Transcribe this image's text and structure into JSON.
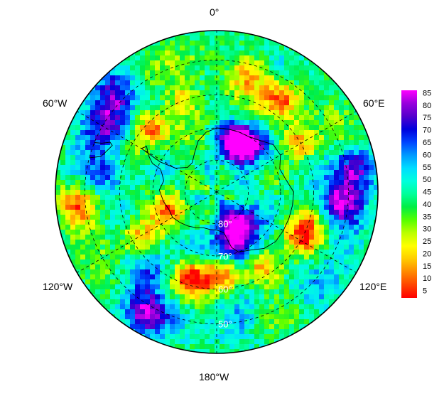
{
  "map": {
    "projection": "south-polar-stereographic",
    "longitude_labels": {
      "top": "0°",
      "upper_left": "60°W",
      "upper_right": "60°E",
      "lower_left": "120°W",
      "lower_right": "120°E",
      "bottom": "180°W"
    },
    "latitude_labels": [
      "80°",
      "70°",
      "60°",
      "50°"
    ],
    "hotspots": [
      {
        "lon": 145,
        "lat": -78,
        "value": 84
      },
      {
        "lon": 160,
        "lat": -72,
        "value": 82
      },
      {
        "lon": 20,
        "lat": -74,
        "value": 80
      },
      {
        "lon": 40,
        "lat": -72,
        "value": 72
      },
      {
        "lon": 95,
        "lat": -52,
        "value": 80
      },
      {
        "lon": 80,
        "lat": -48,
        "value": 78
      },
      {
        "lon": -58,
        "lat": -52,
        "value": 70
      },
      {
        "lon": -80,
        "lat": -55,
        "value": 66
      },
      {
        "lon": -45,
        "lat": -47,
        "value": 70
      },
      {
        "lon": -140,
        "lat": -58,
        "value": 64
      },
      {
        "lon": -150,
        "lat": -48,
        "value": 72
      },
      {
        "lon": 170,
        "lat": -50,
        "value": 60
      },
      {
        "lon": 135,
        "lat": -48,
        "value": 55
      }
    ],
    "lowspots": [
      {
        "lon": 35,
        "lat": -55,
        "value": 6
      },
      {
        "lon": 15,
        "lat": -52,
        "value": 8
      },
      {
        "lon": 60,
        "lat": -60,
        "value": 5
      },
      {
        "lon": 115,
        "lat": -60,
        "value": 4
      },
      {
        "lon": 150,
        "lat": -62,
        "value": 5
      },
      {
        "lon": 175,
        "lat": -64,
        "value": 5
      },
      {
        "lon": -165,
        "lat": -62,
        "value": 6
      },
      {
        "lon": -120,
        "lat": -62,
        "value": 8
      },
      {
        "lon": -95,
        "lat": -48,
        "value": 9
      },
      {
        "lon": -45,
        "lat": -62,
        "value": 10
      },
      {
        "lon": -20,
        "lat": -60,
        "value": 10
      },
      {
        "lon": -110,
        "lat": -74,
        "value": 14
      }
    ]
  },
  "colorbar": {
    "ticks": [
      "85",
      "80",
      "75",
      "70",
      "65",
      "60",
      "55",
      "50",
      "45",
      "40",
      "35",
      "30",
      "25",
      "20",
      "15",
      "10",
      "5"
    ],
    "min": 2,
    "max": 86,
    "colors": [
      "#ff0000",
      "#ff4400",
      "#ff8800",
      "#ffcc00",
      "#ffff00",
      "#bbff00",
      "#55ff00",
      "#00ee44",
      "#00ff99",
      "#00ffdd",
      "#00ddff",
      "#0099ff",
      "#0044ff",
      "#0000dd",
      "#5500cc",
      "#9900dd",
      "#ff00ff"
    ]
  }
}
